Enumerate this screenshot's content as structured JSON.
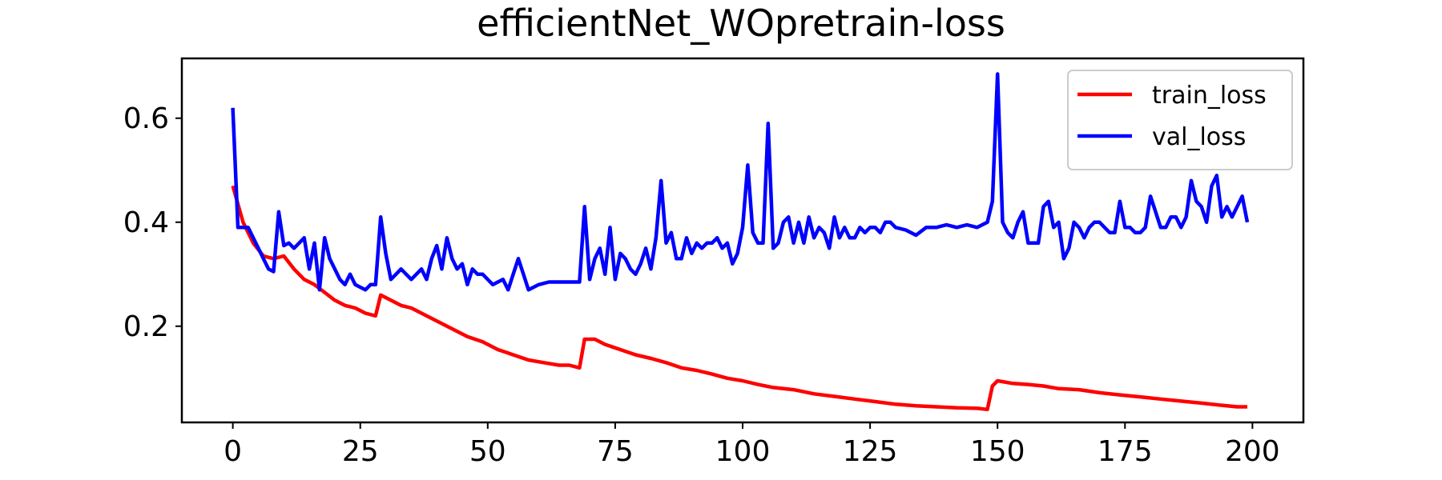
{
  "chart_data": {
    "type": "line",
    "title": "efficientNet_WOpretrain-loss",
    "xlabel": "",
    "ylabel": "",
    "xlim": [
      -10,
      210
    ],
    "ylim": [
      0.015,
      0.715
    ],
    "xticks": [
      0,
      25,
      50,
      75,
      100,
      125,
      150,
      175,
      200
    ],
    "yticks": [
      0.2,
      0.4,
      0.6
    ],
    "grid": false,
    "legend_position": "top-right",
    "series": [
      {
        "name": "train_loss",
        "color": "#ff0000",
        "points": [
          [
            0,
            0.47
          ],
          [
            2,
            0.4
          ],
          [
            4,
            0.36
          ],
          [
            6,
            0.335
          ],
          [
            8,
            0.33
          ],
          [
            10,
            0.335
          ],
          [
            12,
            0.31
          ],
          [
            14,
            0.29
          ],
          [
            16,
            0.28
          ],
          [
            18,
            0.265
          ],
          [
            20,
            0.25
          ],
          [
            22,
            0.24
          ],
          [
            24,
            0.235
          ],
          [
            26,
            0.225
          ],
          [
            28,
            0.22
          ],
          [
            29,
            0.26
          ],
          [
            31,
            0.25
          ],
          [
            33,
            0.24
          ],
          [
            35,
            0.235
          ],
          [
            37,
            0.225
          ],
          [
            40,
            0.21
          ],
          [
            43,
            0.195
          ],
          [
            46,
            0.18
          ],
          [
            49,
            0.17
          ],
          [
            52,
            0.155
          ],
          [
            55,
            0.145
          ],
          [
            58,
            0.135
          ],
          [
            61,
            0.13
          ],
          [
            64,
            0.125
          ],
          [
            66,
            0.125
          ],
          [
            68,
            0.12
          ],
          [
            69,
            0.175
          ],
          [
            71,
            0.175
          ],
          [
            73,
            0.165
          ],
          [
            76,
            0.155
          ],
          [
            79,
            0.145
          ],
          [
            82,
            0.138
          ],
          [
            85,
            0.13
          ],
          [
            88,
            0.12
          ],
          [
            91,
            0.115
          ],
          [
            94,
            0.108
          ],
          [
            97,
            0.1
          ],
          [
            100,
            0.095
          ],
          [
            103,
            0.088
          ],
          [
            106,
            0.082
          ],
          [
            110,
            0.078
          ],
          [
            114,
            0.07
          ],
          [
            118,
            0.065
          ],
          [
            122,
            0.06
          ],
          [
            126,
            0.055
          ],
          [
            130,
            0.05
          ],
          [
            134,
            0.047
          ],
          [
            138,
            0.045
          ],
          [
            142,
            0.043
          ],
          [
            146,
            0.042
          ],
          [
            148,
            0.04
          ],
          [
            149,
            0.085
          ],
          [
            150,
            0.095
          ],
          [
            153,
            0.09
          ],
          [
            156,
            0.088
          ],
          [
            159,
            0.085
          ],
          [
            162,
            0.08
          ],
          [
            166,
            0.078
          ],
          [
            170,
            0.072
          ],
          [
            174,
            0.068
          ],
          [
            178,
            0.064
          ],
          [
            182,
            0.06
          ],
          [
            186,
            0.056
          ],
          [
            190,
            0.052
          ],
          [
            194,
            0.048
          ],
          [
            197,
            0.045
          ],
          [
            199,
            0.045
          ]
        ]
      },
      {
        "name": "val_loss",
        "color": "#0000ff",
        "points": [
          [
            0,
            0.62
          ],
          [
            1,
            0.39
          ],
          [
            2,
            0.39
          ],
          [
            3,
            0.39
          ],
          [
            4,
            0.37
          ],
          [
            5,
            0.35
          ],
          [
            6,
            0.33
          ],
          [
            7,
            0.31
          ],
          [
            8,
            0.305
          ],
          [
            9,
            0.42
          ],
          [
            10,
            0.355
          ],
          [
            11,
            0.36
          ],
          [
            12,
            0.35
          ],
          [
            13,
            0.36
          ],
          [
            14,
            0.37
          ],
          [
            15,
            0.31
          ],
          [
            16,
            0.36
          ],
          [
            17,
            0.27
          ],
          [
            18,
            0.37
          ],
          [
            19,
            0.33
          ],
          [
            20,
            0.31
          ],
          [
            21,
            0.29
          ],
          [
            22,
            0.28
          ],
          [
            23,
            0.3
          ],
          [
            24,
            0.28
          ],
          [
            25,
            0.275
          ],
          [
            26,
            0.27
          ],
          [
            27,
            0.28
          ],
          [
            28,
            0.28
          ],
          [
            29,
            0.41
          ],
          [
            30,
            0.34
          ],
          [
            31,
            0.29
          ],
          [
            32,
            0.3
          ],
          [
            33,
            0.31
          ],
          [
            34,
            0.3
          ],
          [
            35,
            0.29
          ],
          [
            36,
            0.3
          ],
          [
            37,
            0.31
          ],
          [
            38,
            0.29
          ],
          [
            39,
            0.33
          ],
          [
            40,
            0.355
          ],
          [
            41,
            0.31
          ],
          [
            42,
            0.37
          ],
          [
            43,
            0.33
          ],
          [
            44,
            0.31
          ],
          [
            45,
            0.32
          ],
          [
            46,
            0.28
          ],
          [
            47,
            0.31
          ],
          [
            48,
            0.3
          ],
          [
            49,
            0.3
          ],
          [
            50,
            0.29
          ],
          [
            51,
            0.28
          ],
          [
            52,
            0.285
          ],
          [
            53,
            0.29
          ],
          [
            54,
            0.27
          ],
          [
            55,
            0.3
          ],
          [
            56,
            0.33
          ],
          [
            57,
            0.3
          ],
          [
            58,
            0.27
          ],
          [
            59,
            0.275
          ],
          [
            60,
            0.28
          ],
          [
            62,
            0.285
          ],
          [
            64,
            0.285
          ],
          [
            66,
            0.285
          ],
          [
            68,
            0.285
          ],
          [
            69,
            0.43
          ],
          [
            70,
            0.29
          ],
          [
            71,
            0.33
          ],
          [
            72,
            0.35
          ],
          [
            73,
            0.3
          ],
          [
            74,
            0.39
          ],
          [
            75,
            0.29
          ],
          [
            76,
            0.34
          ],
          [
            77,
            0.33
          ],
          [
            78,
            0.31
          ],
          [
            79,
            0.3
          ],
          [
            80,
            0.32
          ],
          [
            81,
            0.35
          ],
          [
            82,
            0.31
          ],
          [
            83,
            0.37
          ],
          [
            84,
            0.48
          ],
          [
            85,
            0.36
          ],
          [
            86,
            0.38
          ],
          [
            87,
            0.33
          ],
          [
            88,
            0.33
          ],
          [
            89,
            0.37
          ],
          [
            90,
            0.34
          ],
          [
            91,
            0.36
          ],
          [
            92,
            0.35
          ],
          [
            93,
            0.36
          ],
          [
            94,
            0.36
          ],
          [
            95,
            0.37
          ],
          [
            96,
            0.35
          ],
          [
            97,
            0.36
          ],
          [
            98,
            0.32
          ],
          [
            99,
            0.34
          ],
          [
            100,
            0.39
          ],
          [
            101,
            0.51
          ],
          [
            102,
            0.38
          ],
          [
            103,
            0.36
          ],
          [
            104,
            0.36
          ],
          [
            105,
            0.59
          ],
          [
            106,
            0.35
          ],
          [
            107,
            0.36
          ],
          [
            108,
            0.4
          ],
          [
            109,
            0.41
          ],
          [
            110,
            0.36
          ],
          [
            111,
            0.4
          ],
          [
            112,
            0.36
          ],
          [
            113,
            0.41
          ],
          [
            114,
            0.37
          ],
          [
            115,
            0.39
          ],
          [
            116,
            0.38
          ],
          [
            117,
            0.35
          ],
          [
            118,
            0.41
          ],
          [
            119,
            0.37
          ],
          [
            120,
            0.39
          ],
          [
            121,
            0.37
          ],
          [
            122,
            0.37
          ],
          [
            123,
            0.39
          ],
          [
            124,
            0.38
          ],
          [
            125,
            0.39
          ],
          [
            126,
            0.39
          ],
          [
            127,
            0.38
          ],
          [
            128,
            0.4
          ],
          [
            129,
            0.4
          ],
          [
            130,
            0.39
          ],
          [
            132,
            0.385
          ],
          [
            134,
            0.375
          ],
          [
            136,
            0.39
          ],
          [
            138,
            0.39
          ],
          [
            140,
            0.395
          ],
          [
            142,
            0.39
          ],
          [
            144,
            0.395
          ],
          [
            146,
            0.39
          ],
          [
            148,
            0.4
          ],
          [
            149,
            0.44
          ],
          [
            150,
            0.685
          ],
          [
            151,
            0.4
          ],
          [
            152,
            0.38
          ],
          [
            153,
            0.37
          ],
          [
            154,
            0.4
          ],
          [
            155,
            0.42
          ],
          [
            156,
            0.36
          ],
          [
            157,
            0.36
          ],
          [
            158,
            0.36
          ],
          [
            159,
            0.43
          ],
          [
            160,
            0.44
          ],
          [
            161,
            0.39
          ],
          [
            162,
            0.4
          ],
          [
            163,
            0.33
          ],
          [
            164,
            0.35
          ],
          [
            165,
            0.4
          ],
          [
            166,
            0.39
          ],
          [
            167,
            0.37
          ],
          [
            168,
            0.39
          ],
          [
            169,
            0.4
          ],
          [
            170,
            0.4
          ],
          [
            171,
            0.39
          ],
          [
            172,
            0.38
          ],
          [
            173,
            0.38
          ],
          [
            174,
            0.44
          ],
          [
            175,
            0.39
          ],
          [
            176,
            0.39
          ],
          [
            177,
            0.38
          ],
          [
            178,
            0.38
          ],
          [
            179,
            0.39
          ],
          [
            180,
            0.45
          ],
          [
            181,
            0.42
          ],
          [
            182,
            0.39
          ],
          [
            183,
            0.39
          ],
          [
            184,
            0.41
          ],
          [
            185,
            0.41
          ],
          [
            186,
            0.39
          ],
          [
            187,
            0.41
          ],
          [
            188,
            0.48
          ],
          [
            189,
            0.44
          ],
          [
            190,
            0.43
          ],
          [
            191,
            0.4
          ],
          [
            192,
            0.47
          ],
          [
            193,
            0.49
          ],
          [
            194,
            0.41
          ],
          [
            195,
            0.43
          ],
          [
            196,
            0.41
          ],
          [
            197,
            0.43
          ],
          [
            198,
            0.45
          ],
          [
            199,
            0.4
          ]
        ]
      }
    ]
  }
}
